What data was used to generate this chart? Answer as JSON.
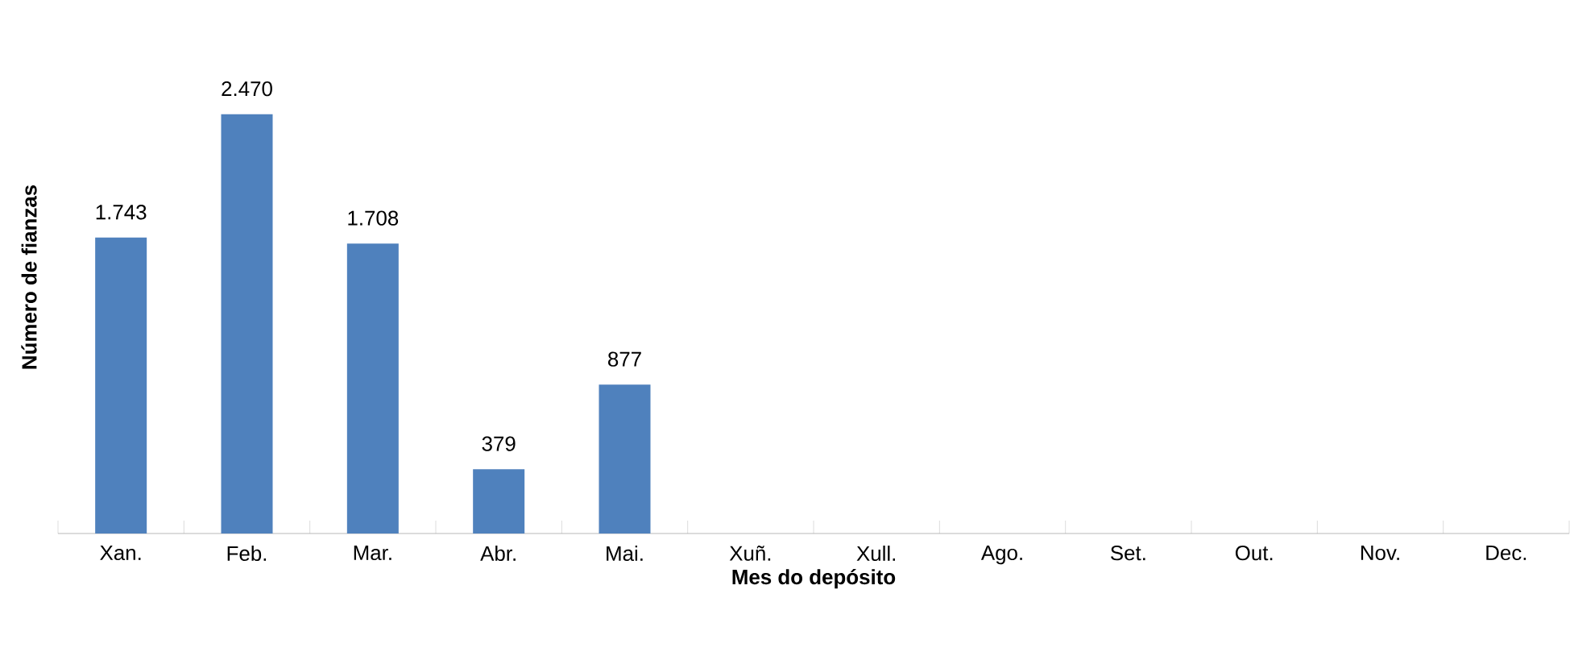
{
  "chart_data": {
    "type": "bar",
    "xlabel": "Mes do depósito",
    "ylabel": "Número de fianzas",
    "categories": [
      "Xan.",
      "Feb.",
      "Mar.",
      "Abr.",
      "Mai.",
      "Xuñ.",
      "Xull.",
      "Ago.",
      "Set.",
      "Out.",
      "Nov.",
      "Dec."
    ],
    "values": [
      1743,
      2470,
      1708,
      379,
      877,
      null,
      null,
      null,
      null,
      null,
      null,
      null
    ],
    "value_labels": [
      "1.743",
      "2.470",
      "1.708",
      "379",
      "877",
      null,
      null,
      null,
      null,
      null,
      null,
      null
    ],
    "color": "#4f81bd"
  }
}
